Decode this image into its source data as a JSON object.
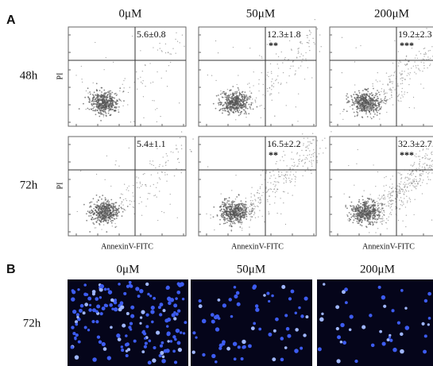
{
  "panel_a": {
    "label": "A",
    "columns": [
      "0μM",
      "50μM",
      "200μM"
    ],
    "rows": [
      {
        "label": "48h",
        "cells": [
          {
            "value": "5.6±0.8"
          },
          {
            "value": "12.3±1.8",
            "sig": "**"
          },
          {
            "value": "19.2±2.3",
            "sig": "***"
          }
        ]
      },
      {
        "label": "72h",
        "cells": [
          {
            "value": "5.4±1.1"
          },
          {
            "value": "16.5±2.2",
            "sig": "**"
          },
          {
            "value": "32.3±2.7",
            "sig": "***"
          }
        ]
      }
    ],
    "y_axis_label": "PI",
    "x_axis_label": "AnnexinV-FITC"
  },
  "panel_b": {
    "label": "B",
    "columns": [
      "0μM",
      "50μM",
      "200μM"
    ],
    "row_label": "72h"
  }
}
